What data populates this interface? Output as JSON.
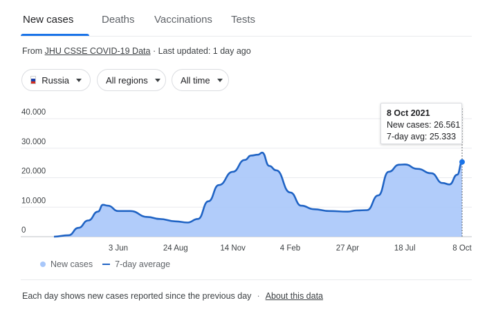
{
  "tabs": [
    {
      "label": "New cases",
      "active": true
    },
    {
      "label": "Deaths",
      "active": false
    },
    {
      "label": "Vaccinations",
      "active": false
    },
    {
      "label": "Tests",
      "active": false
    }
  ],
  "source": {
    "prefix": "From ",
    "link": "JHU CSSE COVID-19 Data",
    "updated": " · Last updated: 1 day ago"
  },
  "filters": {
    "country": "Russia",
    "region": "All regions",
    "period": "All time"
  },
  "tooltip": {
    "date": "8 Oct 2021",
    "new_cases": "New cases: 26.561",
    "avg": "7-day avg: 25.333"
  },
  "legend": {
    "new_cases": "New cases",
    "avg": "7-day average"
  },
  "footer": {
    "text": "Each day shows new cases reported since the previous day",
    "separator": "·",
    "link": "About this data"
  },
  "colors": {
    "area": "#a8c7fa",
    "line": "#1f63c4",
    "grid": "#e8eaed",
    "accent": "#1a73e8"
  },
  "chart_data": {
    "type": "area",
    "ylim": [
      0,
      40000
    ],
    "yticks": [
      0,
      10000,
      20000,
      30000,
      40000
    ],
    "ytick_labels": [
      "0",
      "10.000",
      "20.000",
      "30.000",
      "40.000"
    ],
    "xticks": [
      {
        "x": "2020-06-03",
        "label": "3 Jun"
      },
      {
        "x": "2020-08-24",
        "label": "24 Aug"
      },
      {
        "x": "2020-11-14",
        "label": "14 Nov"
      },
      {
        "x": "2021-02-04",
        "label": "4 Feb"
      },
      {
        "x": "2021-04-27",
        "label": "27 Apr"
      },
      {
        "x": "2021-07-18",
        "label": "18 Jul"
      },
      {
        "x": "2021-10-08",
        "label": "8 Oct"
      }
    ],
    "grid": true,
    "legend_position": "bottom-left",
    "series": [
      {
        "name": "7-day average",
        "x": [
          "2020-03-03",
          "2020-03-24",
          "2020-04-07",
          "2020-04-21",
          "2020-05-05",
          "2020-05-12",
          "2020-05-19",
          "2020-06-03",
          "2020-06-20",
          "2020-07-15",
          "2020-08-01",
          "2020-08-24",
          "2020-09-10",
          "2020-09-25",
          "2020-10-10",
          "2020-10-25",
          "2020-11-14",
          "2020-12-01",
          "2020-12-10",
          "2020-12-20",
          "2020-12-26",
          "2021-01-05",
          "2021-01-15",
          "2021-02-04",
          "2021-02-20",
          "2021-03-10",
          "2021-04-01",
          "2021-04-27",
          "2021-05-10",
          "2021-05-25",
          "2021-06-10",
          "2021-06-25",
          "2021-07-10",
          "2021-07-18",
          "2021-08-05",
          "2021-08-25",
          "2021-09-10",
          "2021-09-20",
          "2021-10-01",
          "2021-10-08"
        ],
        "values": [
          0,
          500,
          3000,
          5500,
          8500,
          10800,
          10500,
          8700,
          8700,
          6700,
          6000,
          5200,
          4800,
          6000,
          12000,
          17500,
          22000,
          26000,
          27500,
          27800,
          28500,
          24000,
          22500,
          15000,
          10500,
          9300,
          8700,
          8500,
          8900,
          9000,
          14000,
          22000,
          24400,
          24500,
          23000,
          21500,
          18200,
          17700,
          21000,
          25333
        ]
      }
    ],
    "highlight": {
      "x": "2021-10-08",
      "new_cases": 26561,
      "avg": 25333
    }
  }
}
